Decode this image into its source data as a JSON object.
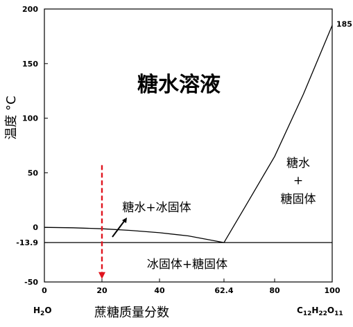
{
  "chart_data": {
    "type": "phase-diagram",
    "xlabel": "蔗糖质量分数",
    "ylabel": "温度 °C",
    "xlim": [
      0,
      100
    ],
    "ylim": [
      -50,
      200
    ],
    "x_ticks": [
      {
        "value": 0,
        "label": "0"
      },
      {
        "value": 20,
        "label": "20"
      },
      {
        "value": 40,
        "label": "40"
      },
      {
        "value": 62.4,
        "label": "62.4"
      },
      {
        "value": 80,
        "label": "80"
      },
      {
        "value": 100,
        "label": "100"
      }
    ],
    "y_ticks": [
      {
        "value": 200,
        "label": "200"
      },
      {
        "value": 150,
        "label": "150"
      },
      {
        "value": 100,
        "label": "100"
      },
      {
        "value": 50,
        "label": "50"
      },
      {
        "value": 0,
        "label": "0"
      },
      {
        "value": -13.9,
        "label": "-13.9"
      },
      {
        "value": -50,
        "label": "-50"
      }
    ],
    "liquidus_ice": [
      [
        0,
        0
      ],
      [
        10,
        -0.4
      ],
      [
        20,
        -1.3
      ],
      [
        30,
        -2.8
      ],
      [
        40,
        -4.9
      ],
      [
        50,
        -7.8
      ],
      [
        62.4,
        -13.9
      ]
    ],
    "liquidus_sugar": [
      [
        62.4,
        -13.9
      ],
      [
        70,
        20
      ],
      [
        80,
        65
      ],
      [
        90,
        122
      ],
      [
        100,
        185
      ]
    ],
    "eutectic": {
      "x": 62.4,
      "y": -13.9
    },
    "eutectic_line_y": -13.9,
    "melting_point_label": "185",
    "regions": {
      "liquid": "糖水溶液",
      "liquid_ice": "糖水+冰固体",
      "liquid_sugar_line1": "糖水",
      "liquid_sugar_line2": "+",
      "liquid_sugar_line3": "糖固体",
      "solid": "冰固体+糖固体"
    },
    "cooling_path": {
      "x": 20,
      "y_start": 57,
      "y_end": -46,
      "color": "#e0141e"
    },
    "x_end_labels": {
      "left": {
        "base": "H",
        "sub": "2",
        "rest": "O"
      },
      "right": {
        "c": "C",
        "c_sub": "12",
        "h": "H",
        "h_sub": "22",
        "o": "O",
        "o_sub": "11"
      }
    }
  }
}
